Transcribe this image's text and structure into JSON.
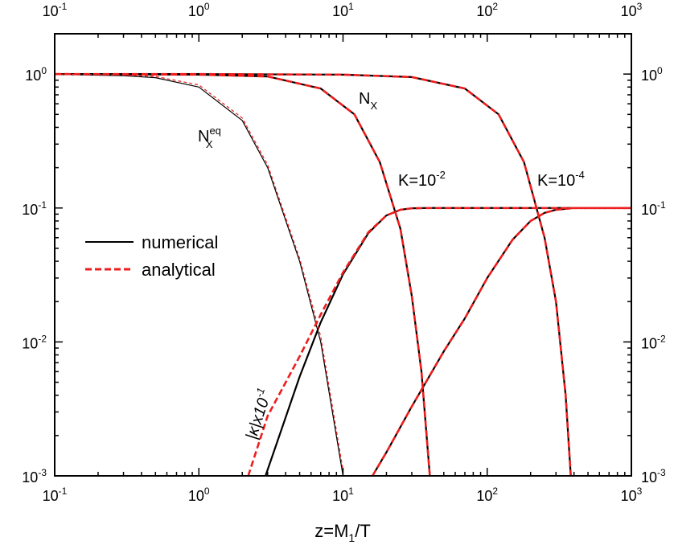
{
  "chart_data": {
    "type": "line",
    "x_scale": "log",
    "y_scale": "log",
    "xlim": [
      0.1,
      1000
    ],
    "ylim": [
      0.001,
      2
    ],
    "xlabel": "z=M_1/T",
    "x_ticks": [
      {
        "value": 0.1,
        "mant": "10",
        "exp": "-1"
      },
      {
        "value": 1,
        "mant": "10",
        "exp": "0"
      },
      {
        "value": 10,
        "mant": "10",
        "exp": "1"
      },
      {
        "value": 100,
        "mant": "10",
        "exp": "2"
      },
      {
        "value": 1000,
        "mant": "10",
        "exp": "3"
      }
    ],
    "y_ticks": [
      {
        "value": 0.001,
        "mant": "10",
        "exp": "-3"
      },
      {
        "value": 0.01,
        "mant": "10",
        "exp": "-2"
      },
      {
        "value": 0.1,
        "mant": "10",
        "exp": "-1"
      },
      {
        "value": 1,
        "mant": "10",
        "exp": "0"
      }
    ],
    "legend": [
      {
        "label": "numerical",
        "color": "#000000",
        "dash": "solid"
      },
      {
        "label": "analytical",
        "color": "#ee1c1c",
        "dash": "dashed"
      }
    ],
    "colors": {
      "numerical": "#000000",
      "analytical": "#ee1c1c"
    },
    "annotations": {
      "neq": {
        "base": "N",
        "sub": "X",
        "sup": "eq"
      },
      "nx": {
        "base": "N",
        "sub": "X"
      },
      "k2": {
        "base": "K=10",
        "sup": "-2"
      },
      "k4": {
        "base": "K=10",
        "sup": "-4"
      },
      "kappa": {
        "pre": "|κ|x10",
        "sup": "-1"
      }
    },
    "series": [
      {
        "group": "N_X^eq",
        "method": "numerical",
        "x": [
          0.1,
          0.3,
          0.5,
          1,
          2,
          3,
          5,
          7,
          10
        ],
        "y": [
          0.995,
          0.972,
          0.94,
          0.8,
          0.45,
          0.2,
          0.04,
          0.01,
          0.001
        ]
      },
      {
        "group": "N_X^eq",
        "method": "analytical",
        "x": [
          0.1,
          0.3,
          0.5,
          1,
          2,
          3,
          5,
          7,
          10
        ],
        "y": [
          1.0,
          0.985,
          0.96,
          0.83,
          0.47,
          0.21,
          0.042,
          0.011,
          0.0011
        ]
      },
      {
        "group": "N_X K=10^-2",
        "method": "numerical",
        "x": [
          0.1,
          1,
          3,
          7,
          12,
          18,
          25,
          30,
          35,
          40
        ],
        "y": [
          1.0,
          0.99,
          0.96,
          0.78,
          0.5,
          0.22,
          0.07,
          0.022,
          0.006,
          0.001
        ]
      },
      {
        "group": "N_X K=10^-2",
        "method": "analytical",
        "x": [
          0.1,
          1,
          3,
          7,
          12,
          18,
          25,
          30,
          35,
          40
        ],
        "y": [
          1.0,
          0.99,
          0.96,
          0.78,
          0.5,
          0.22,
          0.07,
          0.022,
          0.006,
          0.001
        ]
      },
      {
        "group": "N_X K=10^-4",
        "method": "numerical",
        "x": [
          0.1,
          1,
          10,
          30,
          70,
          120,
          180,
          250,
          300,
          350,
          380
        ],
        "y": [
          1.0,
          1.0,
          0.99,
          0.95,
          0.78,
          0.5,
          0.22,
          0.06,
          0.02,
          0.004,
          0.001
        ]
      },
      {
        "group": "N_X K=10^-4",
        "method": "analytical",
        "x": [
          0.1,
          1,
          10,
          30,
          70,
          120,
          180,
          250,
          300,
          350,
          380
        ],
        "y": [
          1.0,
          1.0,
          0.99,
          0.95,
          0.78,
          0.5,
          0.22,
          0.06,
          0.02,
          0.004,
          0.001
        ]
      },
      {
        "group": "|κ| K=10^-2",
        "method": "numerical",
        "x": [
          2.9,
          3.5,
          5,
          7,
          10,
          15,
          20,
          25,
          30,
          40,
          60,
          100,
          1000
        ],
        "y": [
          0.001,
          0.0018,
          0.0055,
          0.014,
          0.032,
          0.065,
          0.088,
          0.097,
          0.0995,
          0.1,
          0.1,
          0.1,
          0.1
        ]
      },
      {
        "group": "|κ| K=10^-2",
        "method": "analytical",
        "x": [
          2.2,
          3,
          5,
          7,
          10,
          15,
          20,
          25,
          30,
          40,
          60,
          100,
          1000
        ],
        "y": [
          0.001,
          0.0028,
          0.0078,
          0.016,
          0.033,
          0.066,
          0.088,
          0.097,
          0.0995,
          0.1,
          0.1,
          0.1,
          0.1
        ]
      },
      {
        "group": "|κ| K=10^-4",
        "method": "numerical",
        "x": [
          16,
          20,
          30,
          50,
          70,
          100,
          150,
          200,
          250,
          300,
          400,
          1000
        ],
        "y": [
          0.001,
          0.0015,
          0.0033,
          0.0085,
          0.015,
          0.03,
          0.058,
          0.08,
          0.092,
          0.097,
          0.1,
          0.1
        ]
      },
      {
        "group": "|κ| K=10^-4",
        "method": "analytical",
        "x": [
          16,
          20,
          30,
          50,
          70,
          100,
          150,
          200,
          250,
          300,
          400,
          1000
        ],
        "y": [
          0.001,
          0.0015,
          0.0033,
          0.0085,
          0.015,
          0.03,
          0.058,
          0.08,
          0.092,
          0.097,
          0.1,
          0.1
        ]
      }
    ]
  }
}
